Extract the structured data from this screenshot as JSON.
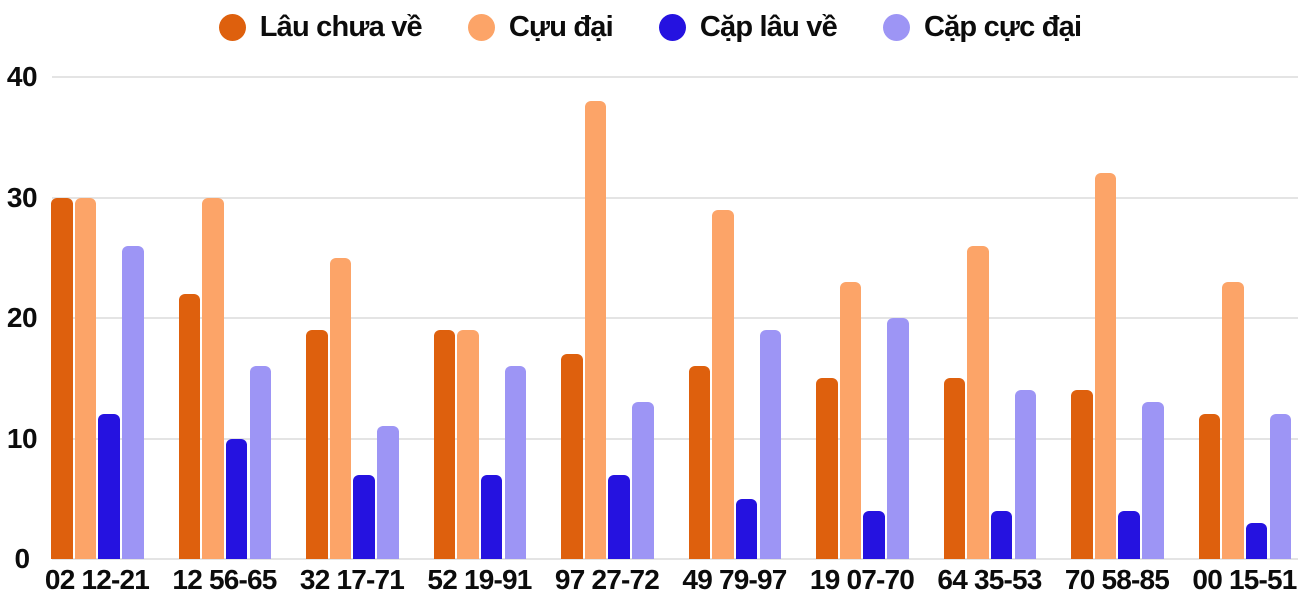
{
  "chart_data": {
    "type": "bar",
    "title": "",
    "xlabel": "",
    "ylabel": "",
    "categories": [
      "02 12-21",
      "12 56-65",
      "32 17-71",
      "52 19-91",
      "97 27-72",
      "49 79-97",
      "19 07-70",
      "64 35-53",
      "70 58-85",
      "00 15-51"
    ],
    "series": [
      {
        "name": "Lâu chưa về",
        "color": "#DE600D",
        "values": [
          30,
          22,
          19,
          19,
          17,
          16,
          15,
          15,
          14,
          12
        ]
      },
      {
        "name": "Cựu đại",
        "color": "#FCA468",
        "values": [
          30,
          30,
          25,
          19,
          38,
          29,
          23,
          26,
          32,
          23
        ]
      },
      {
        "name": "Cặp lâu về",
        "color": "#2512E0",
        "values": [
          12,
          10,
          7,
          7,
          7,
          5,
          4,
          4,
          4,
          3
        ]
      },
      {
        "name": "Cặp cực đại",
        "color": "#9D95F5",
        "values": [
          26,
          16,
          11,
          16,
          13,
          19,
          20,
          14,
          13,
          12
        ]
      }
    ],
    "ylim": [
      0,
      40
    ],
    "yticks": [
      0,
      10,
      20,
      30,
      40
    ],
    "grid": true,
    "legend_position": "top"
  },
  "colors": {
    "background": "#ffffff",
    "gridline": "#e4e4e4",
    "text": "#0c0c0c"
  }
}
